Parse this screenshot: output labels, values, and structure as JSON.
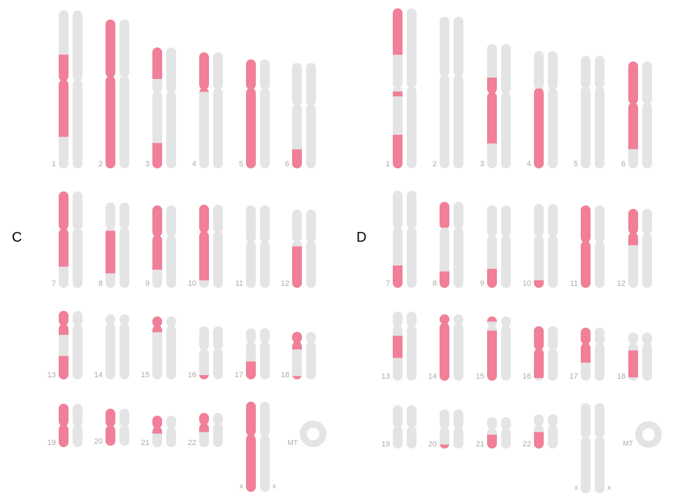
{
  "colors": {
    "highlight": "#f07f97",
    "base": "#e4e4e4",
    "label": "#aaaaaa",
    "panel_label": "#000000"
  },
  "panels": [
    {
      "label": "C",
      "chromosomes": [
        {
          "name": "1",
          "highlights": [
            [
              0.28,
              0.8
            ]
          ]
        },
        {
          "name": "2",
          "highlights": [
            [
              0.0,
              1.0
            ]
          ]
        },
        {
          "name": "3",
          "highlights": [
            [
              0.0,
              0.26
            ],
            [
              0.79,
              1.0
            ]
          ]
        },
        {
          "name": "4",
          "highlights": [
            [
              0.0,
              0.34
            ]
          ]
        },
        {
          "name": "5",
          "highlights": [
            [
              0.0,
              1.0
            ]
          ]
        },
        {
          "name": "6",
          "highlights": [
            [
              0.82,
              1.0
            ]
          ]
        },
        {
          "name": "7",
          "highlights": [
            [
              0.0,
              0.78
            ]
          ]
        },
        {
          "name": "8",
          "highlights": [
            [
              0.33,
              0.83
            ]
          ]
        },
        {
          "name": "9",
          "highlights": [
            [
              0.0,
              0.78
            ]
          ]
        },
        {
          "name": "10",
          "highlights": [
            [
              0.0,
              0.91
            ]
          ]
        },
        {
          "name": "11",
          "highlights": []
        },
        {
          "name": "12",
          "highlights": [
            [
              0.47,
              1.0
            ]
          ]
        },
        {
          "name": "13",
          "highlights": [
            [
              0.0,
              0.35
            ],
            [
              0.66,
              1.0
            ]
          ]
        },
        {
          "name": "14",
          "highlights": []
        },
        {
          "name": "15",
          "highlights": [
            [
              0.0,
              0.25
            ]
          ]
        },
        {
          "name": "16",
          "highlights": [
            [
              0.92,
              1.0
            ]
          ]
        },
        {
          "name": "17",
          "highlights": [
            [
              0.65,
              1.0
            ]
          ]
        },
        {
          "name": "18",
          "highlights": [
            [
              0.0,
              0.37
            ],
            [
              0.93,
              1.0
            ]
          ]
        },
        {
          "name": "19",
          "highlights": [
            [
              0.0,
              1.0
            ]
          ]
        },
        {
          "name": "20",
          "highlights": [
            [
              0.0,
              1.0
            ]
          ]
        },
        {
          "name": "21",
          "highlights": [
            [
              0.0,
              0.57
            ]
          ]
        },
        {
          "name": "22",
          "highlights": [
            [
              0.0,
              0.56
            ]
          ]
        },
        {
          "name": "x",
          "highlights": [
            [
              0.0,
              1.0
            ]
          ]
        },
        {
          "name": "MT",
          "highlights": []
        }
      ]
    },
    {
      "label": "D",
      "chromosomes": [
        {
          "name": "1",
          "highlights": [
            [
              0.0,
              0.29
            ],
            [
              0.52,
              0.55
            ],
            [
              0.79,
              1.0
            ]
          ]
        },
        {
          "name": "2",
          "highlights": []
        },
        {
          "name": "3",
          "highlights": [
            [
              0.27,
              0.8
            ]
          ]
        },
        {
          "name": "4",
          "highlights": [
            [
              0.32,
              1.0
            ]
          ]
        },
        {
          "name": "5",
          "highlights": []
        },
        {
          "name": "6",
          "highlights": [
            [
              0.0,
              0.82
            ]
          ]
        },
        {
          "name": "7",
          "highlights": [
            [
              0.77,
              1.0
            ]
          ]
        },
        {
          "name": "8",
          "highlights": [
            [
              0.0,
              0.3
            ],
            [
              0.81,
              1.0
            ]
          ]
        },
        {
          "name": "9",
          "highlights": [
            [
              0.77,
              1.0
            ]
          ]
        },
        {
          "name": "10",
          "highlights": [
            [
              0.91,
              1.0
            ]
          ]
        },
        {
          "name": "11",
          "highlights": [
            [
              0.0,
              1.0
            ]
          ]
        },
        {
          "name": "12",
          "highlights": [
            [
              0.0,
              0.46
            ]
          ]
        },
        {
          "name": "13",
          "highlights": [
            [
              0.35,
              0.67
            ]
          ]
        },
        {
          "name": "14",
          "highlights": [
            [
              0.0,
              1.0
            ]
          ]
        },
        {
          "name": "15",
          "highlights": [
            [
              0.0,
              0.08
            ],
            [
              0.22,
              1.0
            ]
          ]
        },
        {
          "name": "16",
          "highlights": [
            [
              0.0,
              0.95
            ]
          ]
        },
        {
          "name": "17",
          "highlights": [
            [
              0.0,
              0.66
            ]
          ]
        },
        {
          "name": "18",
          "highlights": [
            [
              0.37,
              0.93
            ]
          ]
        },
        {
          "name": "19",
          "highlights": []
        },
        {
          "name": "20",
          "highlights": [
            [
              0.9,
              1.0
            ]
          ]
        },
        {
          "name": "21",
          "highlights": [
            [
              0.56,
              1.0
            ]
          ]
        },
        {
          "name": "22",
          "highlights": [
            [
              0.52,
              1.0
            ]
          ]
        },
        {
          "name": "x",
          "highlights": []
        },
        {
          "name": "MT",
          "highlights": []
        }
      ]
    }
  ]
}
